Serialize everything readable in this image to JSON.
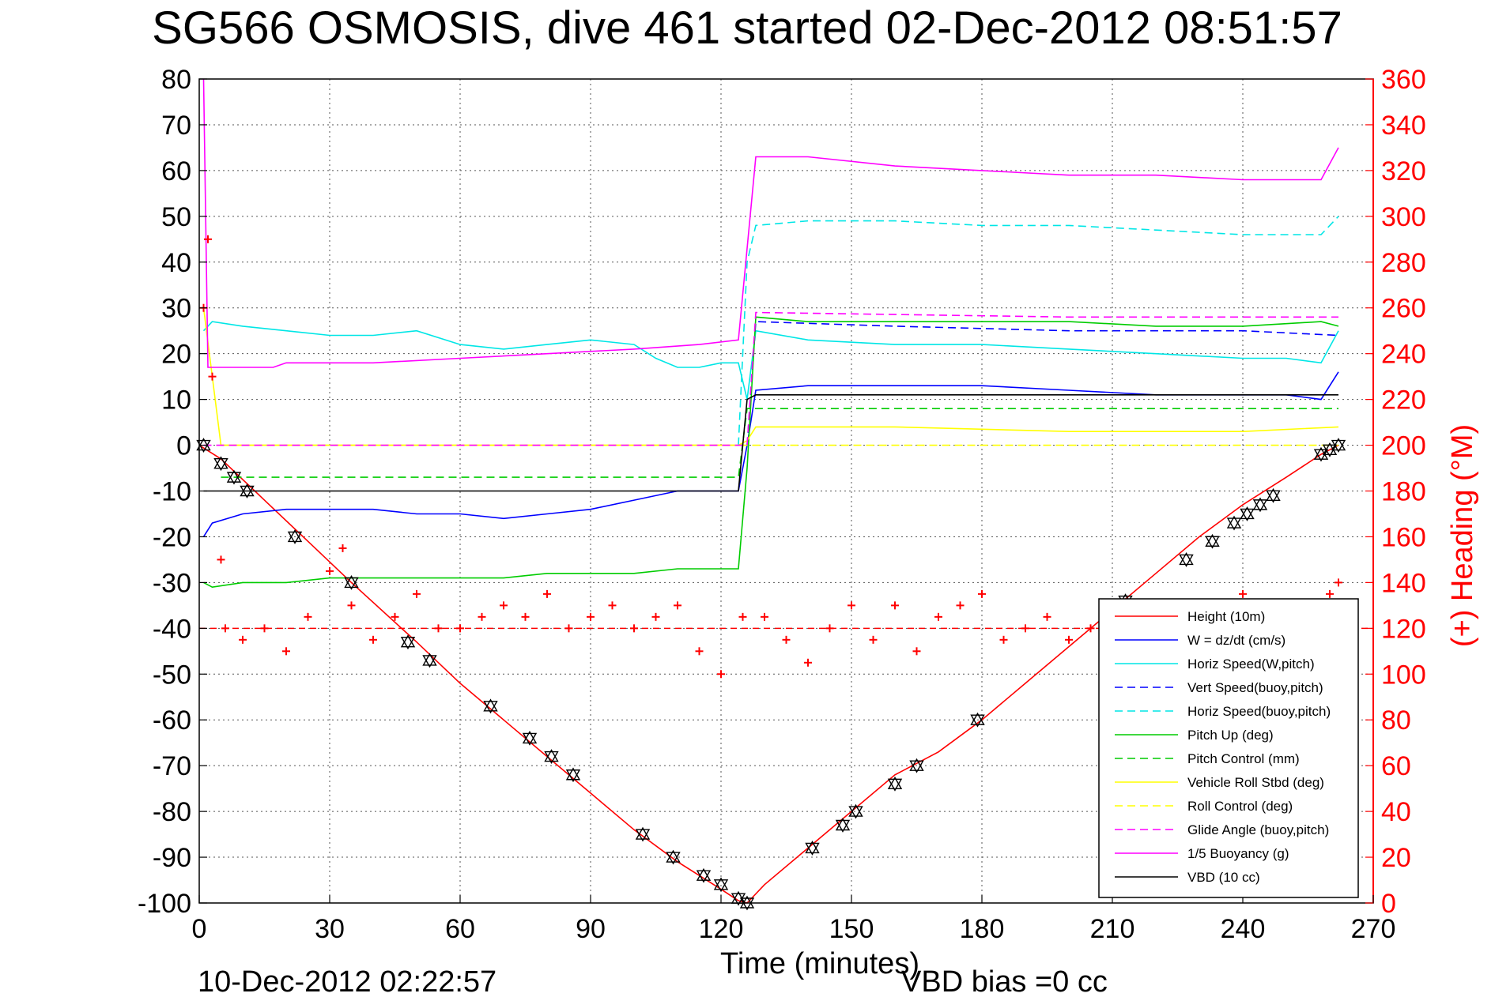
{
  "chart_data": {
    "type": "line",
    "title": "SG566 OSMOSIS, dive 461 started 02-Dec-2012 08:51:57",
    "xlabel": "Time (minutes)",
    "ylabel_right": "(+) Heading (°M)",
    "footer_date": "10-Dec-2012 02:22:57",
    "footer_bias": "VBD bias =0 cc",
    "xlim": [
      0,
      270
    ],
    "ylim": [
      -100,
      80
    ],
    "ylim_right": [
      0,
      360
    ],
    "x_ticks": [
      "0",
      "30",
      "60",
      "90",
      "120",
      "150",
      "180",
      "210",
      "240",
      "270"
    ],
    "y_ticks": [
      "80",
      "70",
      "60",
      "50",
      "40",
      "30",
      "20",
      "10",
      "0",
      "-10",
      "-20",
      "-30",
      "-40",
      "-50",
      "-60",
      "-70",
      "-80",
      "-90",
      "-100"
    ],
    "y_ticks_right": [
      "360",
      "340",
      "320",
      "300",
      "280",
      "260",
      "240",
      "220",
      "200",
      "180",
      "160",
      "140",
      "120",
      "100",
      "80",
      "60",
      "40",
      "20",
      "0"
    ],
    "grid": true,
    "legend_position": "lower-right",
    "series": [
      {
        "name": "Height (10m)",
        "color": "#ff0000",
        "style": "solid",
        "x": [
          0,
          5,
          15,
          25,
          35,
          50,
          60,
          70,
          80,
          90,
          100,
          110,
          115,
          120,
          124,
          126,
          130,
          140,
          150,
          160,
          170,
          180,
          190,
          200,
          210,
          220,
          230,
          240,
          250,
          258,
          262
        ],
        "y": [
          0,
          -3,
          -12,
          -21,
          -30,
          -43,
          -52,
          -60,
          -68,
          -76,
          -84,
          -91,
          -94,
          -97,
          -99.5,
          -100,
          -96,
          -88,
          -80,
          -72,
          -67,
          -60,
          -52,
          -44,
          -36,
          -28,
          -20,
          -13,
          -7,
          -2,
          0
        ]
      },
      {
        "name": "W = dz/dt (cm/s)",
        "color": "#0000ff",
        "style": "solid",
        "x": [
          1,
          3,
          10,
          20,
          30,
          40,
          50,
          60,
          70,
          80,
          90,
          100,
          110,
          120,
          124,
          126,
          128,
          140,
          160,
          180,
          200,
          220,
          230,
          240,
          250,
          258,
          262
        ],
        "y": [
          -20,
          -17,
          -15,
          -14,
          -14,
          -14,
          -15,
          -15,
          -16,
          -15,
          -14,
          -12,
          -10,
          -10,
          -10,
          0,
          12,
          13,
          13,
          13,
          12,
          11,
          11,
          11,
          11,
          10,
          16
        ]
      },
      {
        "name": "Horiz Speed(W,pitch)",
        "color": "#00e6e6",
        "style": "solid",
        "x": [
          1,
          3,
          10,
          20,
          30,
          40,
          50,
          60,
          70,
          80,
          90,
          100,
          105,
          110,
          115,
          120,
          124,
          126,
          128,
          140,
          160,
          180,
          200,
          220,
          240,
          250,
          258,
          262
        ],
        "y": [
          25,
          27,
          26,
          25,
          24,
          24,
          25,
          22,
          21,
          22,
          23,
          22,
          19,
          17,
          17,
          18,
          18,
          10,
          25,
          23,
          22,
          22,
          21,
          20,
          19,
          19,
          18,
          25
        ]
      },
      {
        "name": "Vert Speed(buoy,pitch)",
        "color": "#0000ff",
        "style": "dashed",
        "x": [
          126,
          128,
          160,
          200,
          240,
          262
        ],
        "y": [
          0,
          27,
          26,
          25,
          25,
          24
        ]
      },
      {
        "name": "Horiz Speed(buoy,pitch)",
        "color": "#00e6e6",
        "style": "dashed",
        "x": [
          124,
          126,
          128,
          140,
          160,
          180,
          200,
          220,
          240,
          258,
          262
        ],
        "y": [
          0,
          40,
          48,
          49,
          49,
          48,
          48,
          47,
          46,
          46,
          50
        ]
      },
      {
        "name": "Pitch Up (deg)",
        "color": "#00cc00",
        "style": "solid",
        "x": [
          1,
          3,
          10,
          20,
          30,
          40,
          50,
          60,
          70,
          80,
          90,
          100,
          110,
          120,
          124,
          126,
          128,
          140,
          160,
          180,
          200,
          220,
          240,
          258,
          262
        ],
        "y": [
          -30,
          -31,
          -30,
          -30,
          -29,
          -29,
          -29,
          -29,
          -29,
          -28,
          -28,
          -28,
          -27,
          -27,
          -27,
          -5,
          28,
          27,
          27,
          27,
          27,
          26,
          26,
          27,
          26
        ]
      },
      {
        "name": "Pitch Control (mm)",
        "color": "#00cc00",
        "style": "dashed",
        "x": [
          5,
          124,
          126,
          262
        ],
        "y": [
          -7,
          -7,
          8,
          8
        ]
      },
      {
        "name": "Vehicle Roll Stbd (deg)",
        "color": "#ffff00",
        "style": "solid",
        "x": [
          1,
          5,
          20,
          50,
          80,
          110,
          124,
          126,
          128,
          160,
          200,
          240,
          262
        ],
        "y": [
          30,
          0,
          0,
          0,
          0,
          0,
          0,
          1,
          4,
          4,
          3,
          3,
          4
        ]
      },
      {
        "name": "Roll Control (deg)",
        "color": "#ffff00",
        "style": "dashed",
        "x": [
          5,
          124,
          126,
          262
        ],
        "y": [
          0,
          0,
          0,
          0
        ]
      },
      {
        "name": "Glide Angle (buoy,pitch)",
        "color": "#ff00ff",
        "style": "dashed",
        "x": [
          1,
          124,
          126,
          128,
          200,
          262
        ],
        "y": [
          0,
          0,
          0,
          29,
          28,
          28
        ]
      },
      {
        "name": "1/5 Buoyancy (g)",
        "color": "#ff00ff",
        "style": "solid",
        "x": [
          1,
          2,
          10,
          17,
          20,
          40,
          60,
          80,
          100,
          115,
          124,
          128,
          140,
          160,
          180,
          200,
          220,
          240,
          250,
          258,
          262
        ],
        "y": [
          80,
          17,
          17,
          17,
          18,
          18,
          19,
          20,
          21,
          22,
          23,
          63,
          63,
          61,
          60,
          59,
          59,
          58,
          58,
          58,
          65
        ]
      },
      {
        "name": "VBD (10 cc)",
        "color": "#000000",
        "style": "solid",
        "x": [
          1,
          5,
          124,
          126,
          128,
          262
        ],
        "y": [
          -10,
          -10,
          -10,
          10,
          11,
          11
        ]
      }
    ],
    "heading_series": {
      "name": "Heading",
      "color": "#ff0000",
      "marker": "+",
      "x": [
        1,
        2,
        3,
        5,
        6,
        10,
        15,
        20,
        25,
        30,
        33,
        35,
        40,
        45,
        50,
        55,
        60,
        65,
        70,
        75,
        80,
        85,
        90,
        95,
        100,
        105,
        110,
        115,
        120,
        125,
        130,
        135,
        140,
        145,
        150,
        155,
        160,
        165,
        170,
        175,
        180,
        185,
        190,
        195,
        200,
        205,
        210,
        215,
        220,
        225,
        230,
        235,
        240,
        245,
        250,
        255,
        260,
        262
      ],
      "y": [
        260,
        290,
        230,
        150,
        120,
        115,
        120,
        110,
        125,
        145,
        155,
        130,
        115,
        125,
        135,
        120,
        120,
        125,
        130,
        125,
        135,
        120,
        125,
        130,
        120,
        125,
        130,
        110,
        100,
        125,
        125,
        115,
        105,
        120,
        130,
        115,
        130,
        110,
        125,
        130,
        135,
        115,
        120,
        125,
        115,
        120,
        125,
        130,
        120,
        115,
        125,
        130,
        135,
        125,
        120,
        125,
        135,
        140
      ]
    },
    "heading_reference": {
      "color": "#ff0000",
      "style": "dashed",
      "value": 120
    },
    "height_markers": {
      "x": [
        1,
        5,
        8,
        11,
        22,
        35,
        48,
        53,
        67,
        76,
        81,
        86,
        102,
        109,
        116,
        120,
        124,
        126,
        141,
        148,
        151,
        160,
        165,
        179,
        213,
        227,
        233,
        238,
        241,
        244,
        247,
        258,
        260,
        262
      ],
      "y": [
        0,
        -4,
        -7,
        -10,
        -20,
        -30,
        -43,
        -47,
        -57,
        -64,
        -68,
        -72,
        -85,
        -90,
        -94,
        -96,
        -99,
        -100,
        -88,
        -83,
        -80,
        -74,
        -70,
        -60,
        -34,
        -25,
        -21,
        -17,
        -15,
        -13,
        -11,
        -2,
        -1,
        0
      ]
    }
  }
}
